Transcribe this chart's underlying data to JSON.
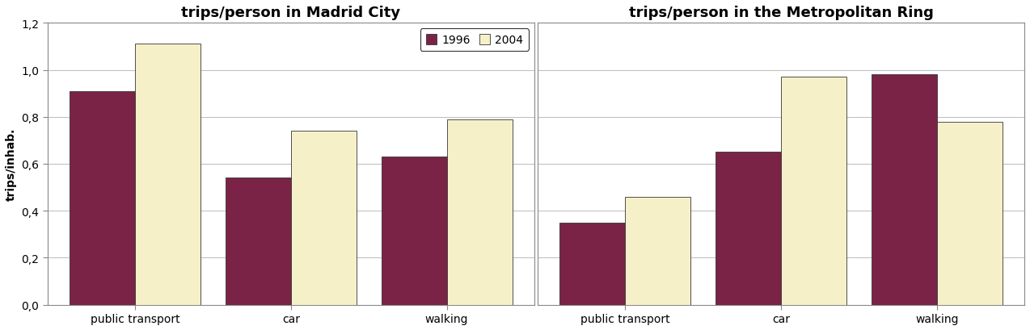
{
  "title_left": "trips/person in Madrid City",
  "title_right": "trips/person in the Metropolitan Ring",
  "ylabel": "trips/inhab.",
  "categories": [
    "public transport",
    "car",
    "walking"
  ],
  "legend_labels": [
    "1996",
    "2004"
  ],
  "madrid_1996": [
    0.91,
    0.54,
    0.63
  ],
  "madrid_2004": [
    1.11,
    0.74,
    0.79
  ],
  "metro_1996": [
    0.35,
    0.65,
    0.98
  ],
  "metro_2004": [
    0.46,
    0.97,
    0.78
  ],
  "color_1996": "#7b2346",
  "color_2004": "#f5f0c8",
  "ylim": [
    0.0,
    1.2
  ],
  "yticks": [
    0.0,
    0.2,
    0.4,
    0.6,
    0.8,
    1.0,
    1.2
  ],
  "ytick_labels": [
    "0,0",
    "0,2",
    "0,4",
    "0,6",
    "0,8",
    "1,0",
    "1,2"
  ],
  "bar_width": 0.42,
  "title_fontsize": 13,
  "tick_fontsize": 10,
  "label_fontsize": 10,
  "legend_fontsize": 10,
  "background_color": "#ffffff",
  "grid_color": "#bbbbbb",
  "spine_color": "#888888"
}
